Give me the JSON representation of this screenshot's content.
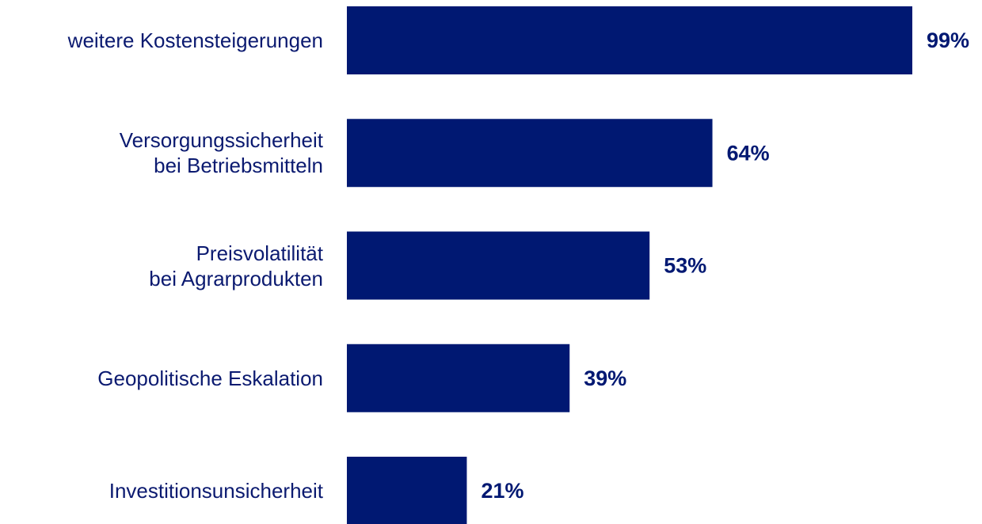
{
  "chart_data": {
    "type": "bar",
    "orientation": "horizontal",
    "categories": [
      "weitere Kostensteigerungen",
      "Versorgungssicherheit\nbei Betriebsmitteln",
      "Preisvolatilität\nbei Agrarprodukten",
      "Geopolitische Eskalation",
      "Investitionsunsicherheit"
    ],
    "values": [
      99,
      64,
      53,
      39,
      21
    ],
    "value_labels": [
      "99%",
      "64%",
      "53%",
      "39%",
      "21%"
    ],
    "color": "#001872"
  }
}
